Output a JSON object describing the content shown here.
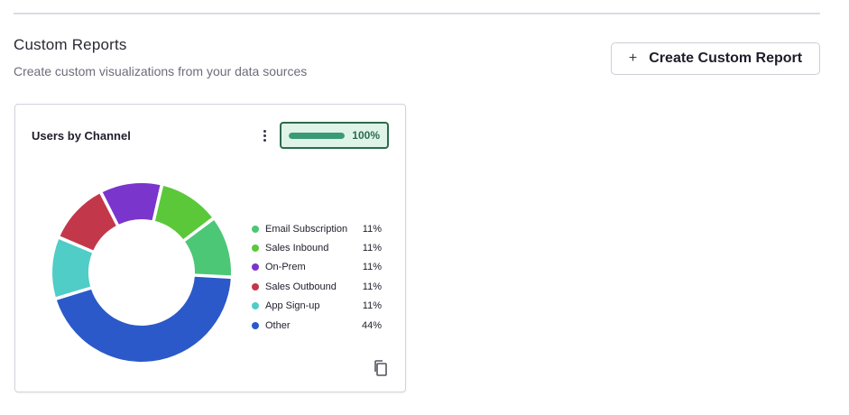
{
  "header": {
    "title": "Custom Reports",
    "subtitle": "Create custom visualizations from your data sources",
    "create_button": {
      "icon": "plus-icon",
      "label": "Create Custom Report"
    }
  },
  "widget": {
    "title": "Users by Channel",
    "menu_icon": "more-vertical-icon",
    "progress": {
      "value": 1.0,
      "label": "100%"
    },
    "copy_icon": "copy-icon",
    "colors": {
      "progress_fill": "#3a9a76",
      "progress_border": "#2d6a4f"
    }
  },
  "chart_data": {
    "type": "pie",
    "categories": [
      "Email Subscription",
      "Sales Inbound",
      "On-Prem",
      "Sales Outbound",
      "App Sign-up",
      "Other"
    ],
    "values": [
      11,
      11,
      11,
      11,
      11,
      44
    ],
    "labels": [
      "11%",
      "11%",
      "11%",
      "11%",
      "11%",
      "44%"
    ],
    "colors": [
      "#4cc776",
      "#5bc839",
      "#7a35cc",
      "#c3374a",
      "#4fcdc6",
      "#2b59c9"
    ],
    "legend": "right"
  }
}
